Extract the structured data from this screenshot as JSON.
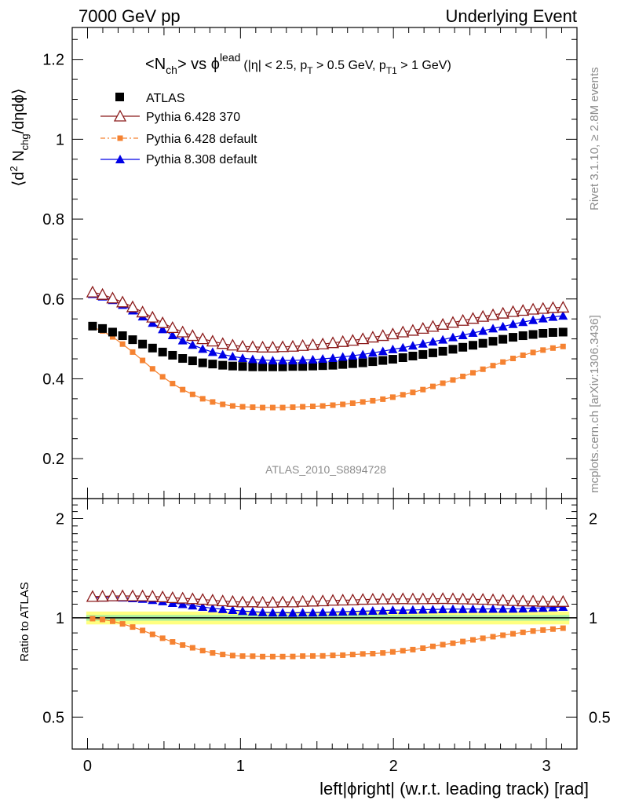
{
  "header": {
    "left": "7000 GeV pp",
    "right": "Underlying Event"
  },
  "title": {
    "main_lt": "<",
    "main_n": "N",
    "main_sub": "ch",
    "main_mid": "> vs ",
    "main_phi": "ϕ",
    "main_sup": "lead",
    "cut_a": "(|η| < 2.5, p",
    "cut_a_sub": "T",
    "cut_b": " > 0.5 GeV, p",
    "cut_b_sub": "T1",
    "cut_c": " > 1 GeV)"
  },
  "ylabel_main": {
    "a": "⟨d",
    "sup": "2",
    "b": " N",
    "sub": "chg",
    "c": "/dηdϕ⟩"
  },
  "ylabel_ratio": "Ratio to ATLAS",
  "xlabel": "left|ϕright| (w.r.t. leading track) [rad]",
  "analysis_tag": "ATLAS_2010_S8894728",
  "side_label_top": "Rivet 3.1.10, ≥ 2.8M events",
  "side_label_bottom": "mcplots.cern.ch [arXiv:1306.3436]",
  "legend": [
    {
      "label": "ATLAS",
      "color": "#000000",
      "marker": "square-filled"
    },
    {
      "label": "Pythia 6.428 370",
      "color": "#8b1a1a",
      "marker": "triangle-open"
    },
    {
      "label": "Pythia 6.428 default",
      "color": "#f58231",
      "marker": "square-small"
    },
    {
      "label": "Pythia 8.308 default",
      "color": "#0000e6",
      "marker": "triangle-filled"
    }
  ],
  "chart_data": [
    {
      "type": "scatter",
      "panel": "main",
      "xlim": [
        -0.1,
        3.2
      ],
      "ylim": [
        0.1,
        1.28
      ],
      "xticks": [
        0,
        1,
        2,
        3
      ],
      "yticks": [
        0.2,
        0.4,
        0.6,
        0.8,
        1,
        1.2
      ],
      "ytick_labels": [
        "0.2",
        "0.4",
        "0.6",
        "0.8",
        "1",
        "1.2"
      ],
      "x": [
        0.033,
        0.098,
        0.164,
        0.229,
        0.295,
        0.36,
        0.425,
        0.491,
        0.556,
        0.622,
        0.687,
        0.753,
        0.818,
        0.884,
        0.949,
        1.014,
        1.08,
        1.145,
        1.211,
        1.276,
        1.342,
        1.407,
        1.473,
        1.538,
        1.604,
        1.669,
        1.734,
        1.8,
        1.865,
        1.931,
        1.996,
        2.062,
        2.127,
        2.193,
        2.258,
        2.323,
        2.389,
        2.454,
        2.52,
        2.585,
        2.651,
        2.716,
        2.782,
        2.847,
        2.913,
        2.978,
        3.043,
        3.109
      ],
      "series": [
        {
          "name": "ATLAS",
          "color": "#000000",
          "marker": "square-filled",
          "values": [
            0.532,
            0.526,
            0.517,
            0.508,
            0.498,
            0.487,
            0.477,
            0.467,
            0.459,
            0.451,
            0.445,
            0.44,
            0.437,
            0.434,
            0.432,
            0.431,
            0.43,
            0.43,
            0.43,
            0.43,
            0.431,
            0.431,
            0.432,
            0.433,
            0.434,
            0.436,
            0.438,
            0.44,
            0.443,
            0.446,
            0.449,
            0.453,
            0.457,
            0.461,
            0.465,
            0.469,
            0.474,
            0.479,
            0.484,
            0.489,
            0.494,
            0.499,
            0.504,
            0.508,
            0.511,
            0.514,
            0.516,
            0.517
          ]
        },
        {
          "name": "Pythia 6.428 370",
          "color": "#8b1a1a",
          "marker": "triangle-open",
          "values": [
            0.617,
            0.611,
            0.602,
            0.592,
            0.58,
            0.567,
            0.554,
            0.54,
            0.528,
            0.517,
            0.508,
            0.5,
            0.494,
            0.488,
            0.484,
            0.481,
            0.48,
            0.479,
            0.479,
            0.48,
            0.481,
            0.483,
            0.485,
            0.487,
            0.49,
            0.493,
            0.496,
            0.5,
            0.504,
            0.508,
            0.512,
            0.517,
            0.521,
            0.526,
            0.531,
            0.536,
            0.541,
            0.546,
            0.551,
            0.556,
            0.56,
            0.564,
            0.568,
            0.571,
            0.574,
            0.576,
            0.578,
            0.579
          ]
        },
        {
          "name": "Pythia 6.428 default",
          "color": "#f58231",
          "marker": "square-small",
          "values": [
            0.529,
            0.52,
            0.505,
            0.487,
            0.467,
            0.446,
            0.425,
            0.405,
            0.388,
            0.373,
            0.361,
            0.35,
            0.342,
            0.336,
            0.332,
            0.33,
            0.329,
            0.328,
            0.328,
            0.328,
            0.329,
            0.33,
            0.331,
            0.332,
            0.334,
            0.336,
            0.339,
            0.342,
            0.345,
            0.349,
            0.354,
            0.36,
            0.366,
            0.373,
            0.381,
            0.389,
            0.397,
            0.406,
            0.415,
            0.424,
            0.433,
            0.442,
            0.451,
            0.459,
            0.466,
            0.472,
            0.477,
            0.481
          ]
        },
        {
          "name": "Pythia 8.308 default",
          "color": "#0000e6",
          "marker": "triangle-filled",
          "values": [
            0.612,
            0.606,
            0.597,
            0.585,
            0.571,
            0.556,
            0.54,
            0.524,
            0.509,
            0.496,
            0.485,
            0.475,
            0.467,
            0.461,
            0.456,
            0.452,
            0.449,
            0.447,
            0.446,
            0.446,
            0.446,
            0.447,
            0.448,
            0.45,
            0.452,
            0.455,
            0.458,
            0.461,
            0.465,
            0.469,
            0.474,
            0.478,
            0.483,
            0.488,
            0.493,
            0.498,
            0.504,
            0.509,
            0.515,
            0.52,
            0.526,
            0.531,
            0.537,
            0.542,
            0.547,
            0.551,
            0.555,
            0.558
          ]
        }
      ]
    },
    {
      "type": "scatter",
      "panel": "ratio",
      "xlim": [
        -0.1,
        3.2
      ],
      "ylim": [
        0.4,
        2.3
      ],
      "xticks": [
        0,
        1,
        2,
        3
      ],
      "yticks": [
        0.5,
        1,
        2
      ],
      "ytick_labels": [
        "0.5",
        "1",
        "2"
      ],
      "band_colors": {
        "outer": "#ffff80",
        "inner": "#aaf0a0"
      },
      "reference_line": 1
    }
  ]
}
